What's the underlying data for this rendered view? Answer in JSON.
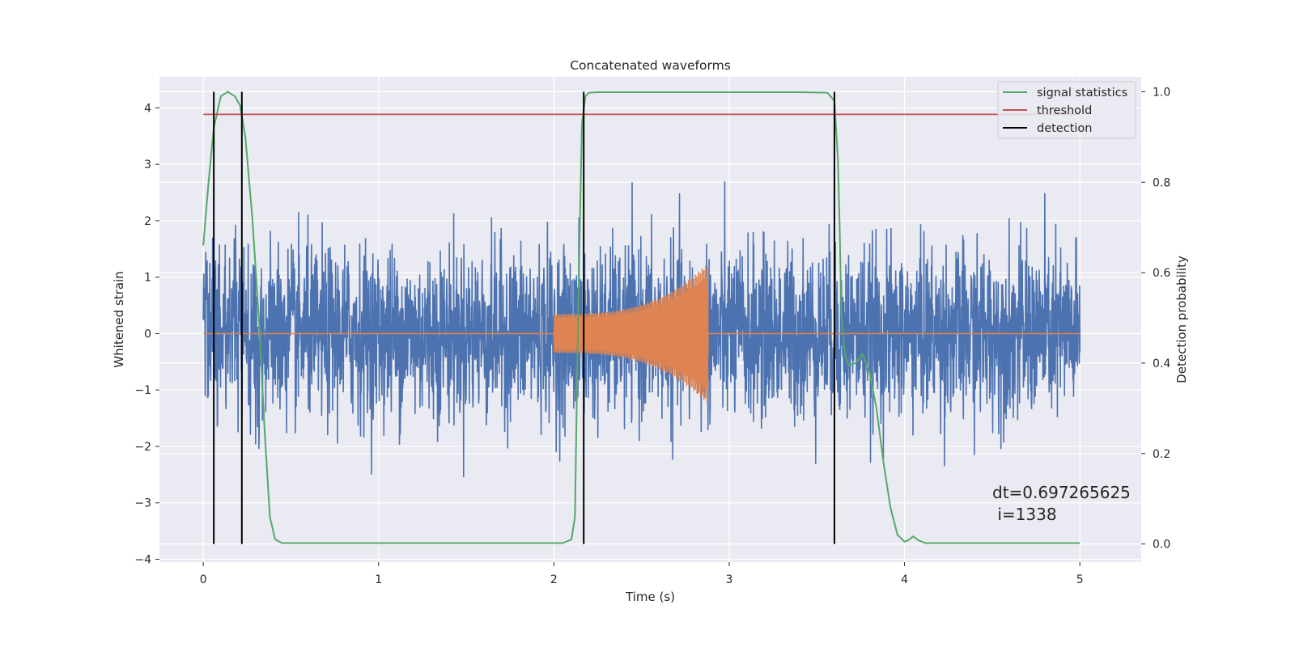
{
  "chart_data": {
    "type": "line",
    "title": "Concatenated waveforms",
    "xlabel": "Time (s)",
    "ylabel": "Whitened strain",
    "ylabel_right": "Detection probability",
    "xlim": [
      -0.25,
      5.35
    ],
    "ylim": [
      -4.05,
      4.55
    ],
    "ylim_right": [
      -0.04,
      1.033
    ],
    "x_ticks": [
      0,
      1,
      2,
      3,
      4,
      5
    ],
    "y_ticks": [
      -4,
      -3,
      -2,
      -1,
      0,
      1,
      2,
      3,
      4
    ],
    "y_ticks_right": [
      0.0,
      0.2,
      0.4,
      0.6,
      0.8,
      1.0
    ],
    "y_tick_labels_right": [
      "0.0",
      "0.2",
      "0.4",
      "0.6",
      "0.8",
      "1.0"
    ],
    "grid": true,
    "legend_position": "top-right",
    "colors": {
      "background": "#eaeaf2",
      "grid": "#ffffff",
      "strain": "#4c72b0",
      "injection": "#dd8452",
      "signal_statistics": "#55a868",
      "threshold": "#c44e52",
      "detection": "#000000"
    },
    "series": [
      {
        "name": "signal statistics",
        "axis": "right",
        "x": [
          0.0,
          0.03,
          0.06,
          0.1,
          0.14,
          0.18,
          0.21,
          0.24,
          0.28,
          0.32,
          0.35,
          0.38,
          0.41,
          0.45,
          0.6,
          1.0,
          1.5,
          1.9,
          2.05,
          2.1,
          2.12,
          2.14,
          2.16,
          2.18,
          2.2,
          2.25,
          2.4,
          2.7,
          3.0,
          3.4,
          3.56,
          3.6,
          3.62,
          3.63,
          3.64,
          3.66,
          3.68,
          3.72,
          3.76,
          3.8,
          3.84,
          3.88,
          3.92,
          3.96,
          4.0,
          4.02,
          4.05,
          4.08,
          4.12,
          4.3,
          5.0
        ],
        "values": [
          0.66,
          0.8,
          0.92,
          0.99,
          1.0,
          0.99,
          0.97,
          0.9,
          0.72,
          0.48,
          0.25,
          0.06,
          0.01,
          0.002,
          0.002,
          0.002,
          0.002,
          0.002,
          0.002,
          0.01,
          0.06,
          0.55,
          0.93,
          0.99,
          0.998,
          0.999,
          0.999,
          0.999,
          0.999,
          0.999,
          0.998,
          0.98,
          0.85,
          0.7,
          0.5,
          0.42,
          0.395,
          0.4,
          0.42,
          0.38,
          0.3,
          0.18,
          0.08,
          0.02,
          0.005,
          0.008,
          0.017,
          0.008,
          0.002,
          0.002,
          0.002
        ]
      },
      {
        "name": "threshold",
        "axis": "right",
        "x": [
          0.0,
          5.0
        ],
        "values": [
          0.95,
          0.95
        ]
      },
      {
        "name": "detection",
        "axis": "right",
        "type": "vlines",
        "x": [
          0.06,
          0.22,
          2.17,
          3.6
        ],
        "ymin": 0.0,
        "ymax": 1.0
      }
    ],
    "strain": {
      "x_range": [
        0.0,
        5.0
      ],
      "envelope_std": 0.75,
      "seed": 1338
    },
    "injection": {
      "x_start": 2.0,
      "x_end": 2.88,
      "amp_start": 0.35,
      "amp_end": 1.25
    },
    "annotation": {
      "line1": "dt=0.697265625",
      "line2": " i=1338"
    }
  }
}
